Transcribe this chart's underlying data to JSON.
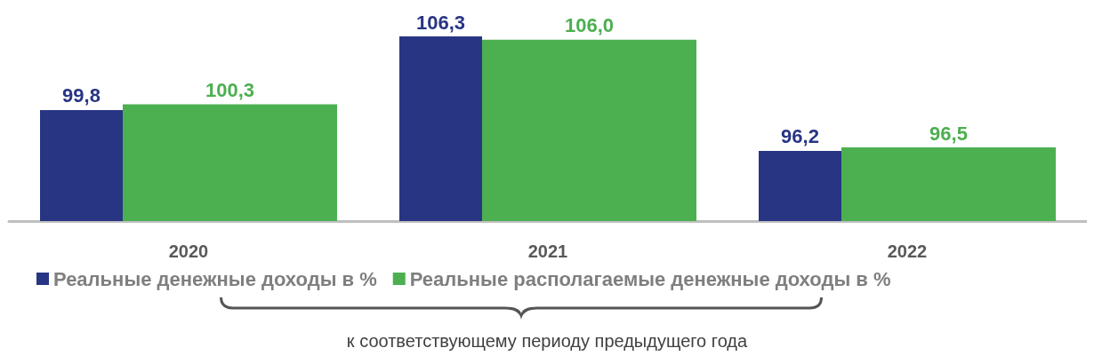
{
  "chart_data": {
    "type": "bar",
    "categories": [
      "2020",
      "2021",
      "2022"
    ],
    "series": [
      {
        "name": "Реальные денежные доходы в %",
        "color": "#283583",
        "values": [
          99.8,
          106.3,
          96.2
        ],
        "value_labels": [
          "99,8",
          "106,3",
          "96,2"
        ]
      },
      {
        "name": "Реальные располагаемые денежные доходы в %",
        "color": "#4caf50",
        "values": [
          100.3,
          106.0,
          96.5
        ],
        "value_labels": [
          "100,3",
          "106,0",
          "96,5"
        ]
      }
    ],
    "ylim": [
      90,
      106.3
    ],
    "tick_labels": "x",
    "grid": false,
    "legend": "bottom",
    "annotations": [
      "к соответствующему периоду предыдущего года"
    ]
  }
}
